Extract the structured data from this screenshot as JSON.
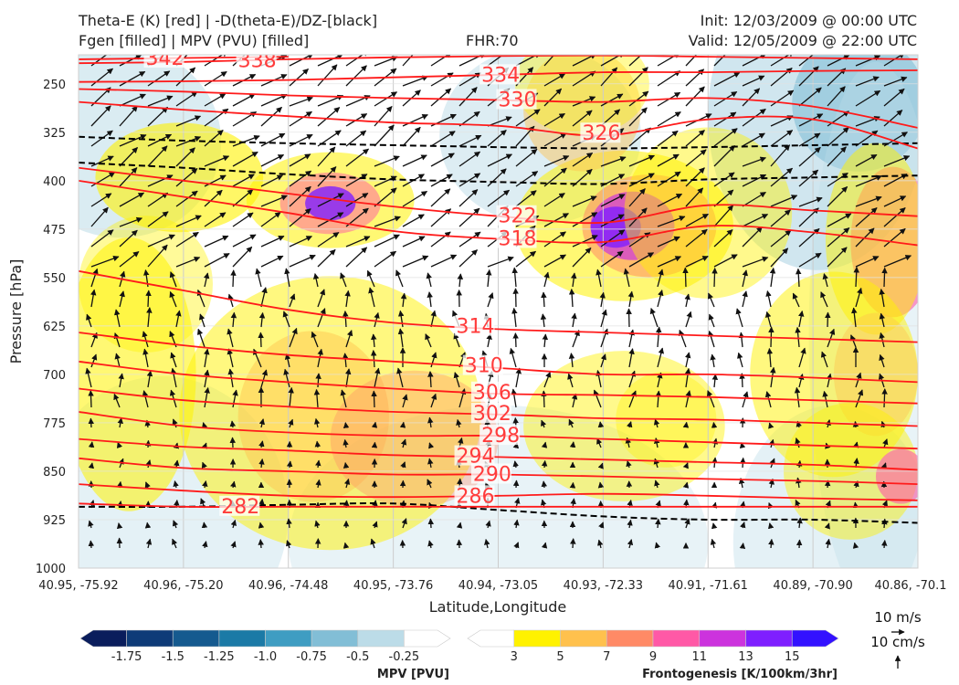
{
  "header": {
    "left_line1": "Theta-E (K) [red] | -D(theta-E)/DZ-[black]",
    "left_line2": "Fgen [filled] | MPV (PVU) [filled]",
    "center": "FHR:70",
    "right_line1": "Init: 12/03/2009 @ 00:00 UTC",
    "right_line2": "Valid: 12/05/2009 @ 22:00 UTC"
  },
  "chart_data": {
    "type": "cross-section",
    "xlabel": "Latitude,Longitude",
    "ylabel": "Pressure [hPa]",
    "x_ticks": [
      "40.95, -75.92",
      "40.96, -75.20",
      "40.96, -74.48",
      "40.95, -73.76",
      "40.94, -73.05",
      "40.93, -72.33",
      "40.91, -71.61",
      "40.89, -70.90",
      "40.86, -70.1"
    ],
    "y_ticks": [
      250,
      325,
      400,
      475,
      550,
      625,
      700,
      775,
      850,
      925,
      1000
    ],
    "ylim": [
      1000,
      205
    ],
    "theta_e_contours": [
      {
        "label": "342",
        "p": [
          212,
          210,
          208
        ]
      },
      {
        "label": "338",
        "p": [
          218,
          216,
          212,
          209,
          207,
          206,
          208,
          210,
          212
        ]
      },
      {
        "label": "334",
        "p": [
          247,
          246,
          244,
          240,
          236,
          232,
          232,
          230,
          229
        ]
      },
      {
        "label": "330",
        "p": [
          258,
          262,
          268,
          272,
          275,
          278,
          272,
          285,
          318
        ]
      },
      {
        "label": "326",
        "p": [
          278,
          290,
          300,
          310,
          315,
          330,
          305,
          305,
          350
        ]
      },
      {
        "label": "322",
        "p": [
          380,
          400,
          420,
          440,
          455,
          465,
          438,
          446,
          455
        ]
      },
      {
        "label": "318",
        "p": [
          400,
          425,
          450,
          478,
          490,
          495,
          470,
          480,
          500
        ]
      },
      {
        "label": "314",
        "p": [
          540,
          570,
          600,
          620,
          630,
          635,
          640,
          645,
          650
        ]
      },
      {
        "label": "310",
        "p": [
          635,
          655,
          670,
          680,
          690,
          700,
          700,
          705,
          712
        ]
      },
      {
        "label": "306",
        "p": [
          680,
          700,
          712,
          722,
          730,
          732,
          735,
          740,
          745
        ]
      },
      {
        "label": "302",
        "p": [
          722,
          740,
          750,
          758,
          762,
          768,
          770,
          775,
          780
        ]
      },
      {
        "label": "298",
        "p": [
          758,
          780,
          790,
          795,
          795,
          800,
          805,
          810,
          815
        ]
      },
      {
        "label": "294",
        "p": [
          800,
          812,
          818,
          825,
          828,
          832,
          836,
          840,
          848
        ]
      },
      {
        "label": "290",
        "p": [
          830,
          845,
          850,
          855,
          855,
          858,
          862,
          865,
          870
        ]
      },
      {
        "label": "286",
        "p": [
          870,
          880,
          888,
          890,
          888,
          885,
          888,
          892,
          895
        ]
      },
      {
        "label": "282",
        "p": [
          900,
          905,
          905,
          905,
          905,
          905,
          905,
          905,
          905
        ]
      }
    ],
    "stability_contours_dashed": [
      {
        "p": [
          332,
          338,
          342,
          345,
          348,
          350,
          348,
          345,
          342
        ]
      },
      {
        "p": [
          372,
          380,
          390,
          398,
          402,
          405,
          398,
          395,
          392
        ]
      },
      {
        "p": [
          905,
          905,
          902,
          900,
          910,
          920,
          925,
          925,
          930
        ]
      }
    ],
    "mpv_colorbar": {
      "title": "MPV [PVU]",
      "ticks": [
        "-1.75",
        "-1.5",
        "-1.25",
        "-1.0",
        "-0.75",
        "-0.5",
        "-0.25"
      ],
      "colors": [
        "#0a1d5c",
        "#0e3b78",
        "#155a8f",
        "#1b7aa6",
        "#3f9dc2",
        "#82bed6",
        "#bcdce8",
        "#ffffff"
      ]
    },
    "fgen_colorbar": {
      "title": "Frontogenesis [K/100km/3hr]",
      "ticks": [
        "3",
        "5",
        "7",
        "9",
        "11",
        "13",
        "15"
      ],
      "colors": [
        "#ffffff",
        "#fff200",
        "#ffc14d",
        "#ff8a66",
        "#ff59a6",
        "#cc33dd",
        "#7f1fff",
        "#3311ff"
      ]
    },
    "vector_key": {
      "label1": "10 m/s",
      "label2": "10 cm/s"
    }
  }
}
